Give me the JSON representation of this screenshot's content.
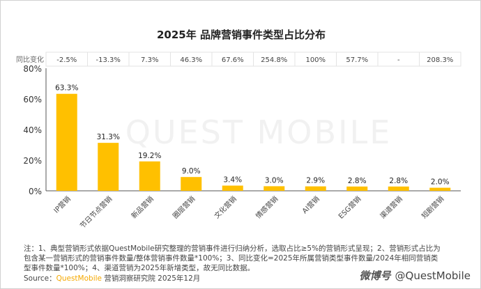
{
  "chart_data": {
    "type": "bar",
    "title": "2025年 品牌营销事件类型占比分布",
    "categories": [
      "IP营销",
      "节日节点营销",
      "新品营销",
      "圈层营销",
      "文化营销",
      "情感营销",
      "AI营销",
      "ESG营销",
      "渠道营销",
      "短剧营销"
    ],
    "values": [
      63.3,
      31.3,
      19.2,
      9.0,
      3.4,
      3.0,
      2.9,
      2.8,
      2.8,
      2.0
    ],
    "value_labels": [
      "63.3%",
      "31.3%",
      "19.2%",
      "9.0%",
      "3.4%",
      "3.0%",
      "2.9%",
      "2.8%",
      "2.8%",
      "2.0%"
    ],
    "yoy_label": "同比变化",
    "yoy": [
      "-2.5%",
      "-13.3%",
      "7.3%",
      "46.3%",
      "67.6%",
      "254.8%",
      "100%",
      "57.7%",
      "-",
      "208.3%"
    ],
    "ylim": [
      0,
      80
    ],
    "yticks": [
      "0%",
      "20%",
      "40%",
      "60%",
      "80%"
    ],
    "ytick_values": [
      0,
      20,
      40,
      60,
      80
    ],
    "xlabel": "",
    "ylabel": "",
    "grid": false,
    "bar_color": "#ffc000",
    "watermark": "QUEST MOBILE"
  },
  "notes": "注：1、典型营销形式依据QuestMobile研究整理的营销事件进行归纳分析，选取占比≥5%的营销形式呈现；2、营销形式占比为包含某一营销形式的营销事件数量/整体营销事件数量*100%；3、同比变化=2025年所属营销类型事件数量/2024年相同营销类型事件数量*100%；4、渠道营销为2025年新增类型，故无同比数据。",
  "source": {
    "prefix": "Source：",
    "brand": "QuestMobile",
    "rest": " 营销洞察研究院 2025年12月"
  },
  "weibo": {
    "logo": "微博号",
    "handle": "@QuestMobile"
  }
}
